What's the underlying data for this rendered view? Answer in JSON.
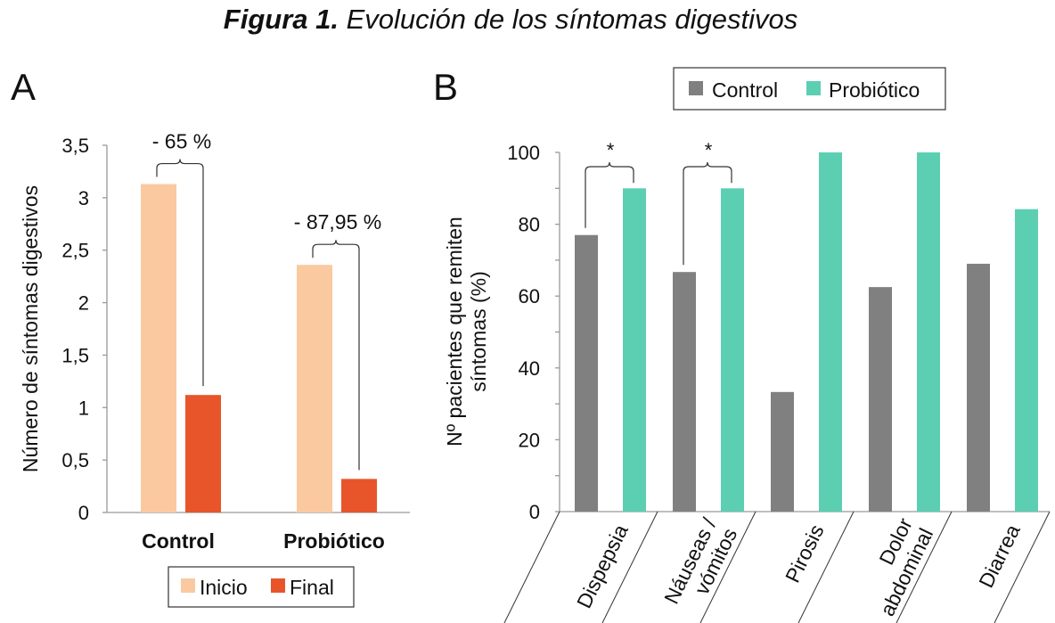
{
  "figure": {
    "title_bold": "Figura 1.",
    "title_rest": " Evolución de los síntomas digestivos"
  },
  "chart_data": [
    {
      "panel": "A",
      "type": "bar",
      "categories": [
        "Control",
        "Probiótico"
      ],
      "series": [
        {
          "name": "Inicio",
          "color": "#fbc9a0",
          "values": [
            3.13,
            2.36
          ]
        },
        {
          "name": "Final",
          "color": "#e8552b",
          "values": [
            1.12,
            0.32
          ]
        }
      ],
      "ylabel": "Número de síntomas digestivos",
      "xlabel": "",
      "ylim": [
        0,
        3.5
      ],
      "yticks": [
        "0",
        "0,5",
        "1",
        "1,5",
        "2",
        "2,5",
        "3",
        "3,5"
      ],
      "annotations": [
        "- 65 %",
        "- 87,95 %"
      ],
      "legend_position": "bottom",
      "grid": false
    },
    {
      "panel": "B",
      "type": "bar",
      "categories": [
        "Dispepsia",
        "Náuseas / vómitos",
        "Pirosis",
        "Dolor abdominal",
        "Diarrea"
      ],
      "category_lines": [
        [
          "Dispepsia"
        ],
        [
          "Náuseas /",
          "vómitos"
        ],
        [
          "Pirosis"
        ],
        [
          "Dolor",
          "abdominal"
        ],
        [
          "Diarrea"
        ]
      ],
      "series": [
        {
          "name": "Control",
          "color": "#808080",
          "values": [
            77,
            66.7,
            33.3,
            62.5,
            69
          ]
        },
        {
          "name": "Probiótico",
          "color": "#5ccfb2",
          "values": [
            90,
            90,
            100,
            100,
            84.2
          ]
        }
      ],
      "ylabel_lines": [
        "Nº pacientes que remiten",
        "síntomas (%)"
      ],
      "xlabel": "",
      "ylim": [
        0,
        100
      ],
      "yticks": [
        "0",
        "20",
        "40",
        "60",
        "80",
        "100"
      ],
      "annotations": [
        "*",
        "*"
      ],
      "legend_position": "top",
      "grid": false
    }
  ]
}
